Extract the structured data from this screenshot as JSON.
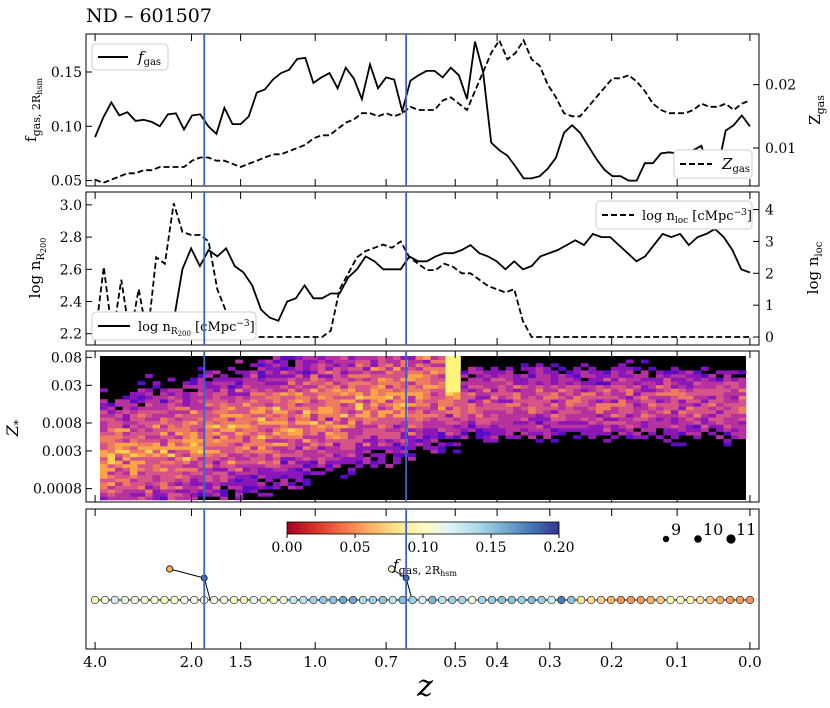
{
  "title": "ND – 601507",
  "xaxis": {
    "label": "z",
    "ticks": [
      {
        "label": "4.0",
        "t": 4.0
      },
      {
        "label": "2.0",
        "t": 9.3
      },
      {
        "label": "1.5",
        "t": 12.0
      },
      {
        "label": "1.0",
        "t": 16.1
      },
      {
        "label": "0.7",
        "t": 20.0
      },
      {
        "label": "0.5",
        "t": 23.8
      },
      {
        "label": "0.4",
        "t": 26.1
      },
      {
        "label": "0.3",
        "t": 29.0
      },
      {
        "label": "0.2",
        "t": 32.4
      },
      {
        "label": "0.1",
        "t": 36.0
      },
      {
        "label": "0.0",
        "t": 40.0
      }
    ],
    "t_range": [
      3.5,
      40.5
    ],
    "vlines_t": [
      10.0,
      21.1
    ]
  },
  "colors": {
    "vline": "#3b64c9",
    "line": "#000000",
    "heatmap_bg": "#000000"
  },
  "chart_data": [
    {
      "type": "line",
      "panel": "fgas",
      "ylabel_left": "f_gas, 2R_hsm",
      "ylabel_right": "Z_gas",
      "ylim_left": [
        0.045,
        0.185
      ],
      "yticks_left": [
        "0.05",
        "0.10",
        "0.15"
      ],
      "ylim_right": [
        0.004,
        0.028
      ],
      "yticks_right": [
        "0.01",
        "0.02"
      ],
      "legend": [
        {
          "label": "f_gas",
          "style": "solid",
          "position": "top-left"
        },
        {
          "label": "Z_gas",
          "style": "dashed",
          "position": "bottom-right"
        }
      ],
      "series": [
        {
          "name": "f_gas",
          "style": "solid",
          "axis": "left",
          "values": [
            0.09,
            0.108,
            0.122,
            0.11,
            0.113,
            0.105,
            0.106,
            0.104,
            0.1,
            0.111,
            0.112,
            0.097,
            0.11,
            0.111,
            0.1,
            0.093,
            0.117,
            0.102,
            0.102,
            0.109,
            0.131,
            0.134,
            0.143,
            0.149,
            0.152,
            0.162,
            0.163,
            0.14,
            0.145,
            0.149,
            0.135,
            0.154,
            0.144,
            0.125,
            0.157,
            0.135,
            0.145,
            0.143,
            0.114,
            0.142,
            0.147,
            0.151,
            0.151,
            0.145,
            0.154,
            0.147,
            0.125,
            0.178,
            0.15,
            0.085,
            0.078,
            0.073,
            0.063,
            0.052,
            0.052,
            0.054,
            0.061,
            0.071,
            0.094,
            0.101,
            0.094,
            0.082,
            0.07,
            0.06,
            0.054,
            0.054,
            0.05,
            0.05,
            0.066,
            0.066,
            0.075,
            0.076,
            0.075,
            0.065,
            0.078,
            0.082,
            0.058,
            0.06,
            0.096,
            0.101,
            0.11,
            0.1
          ]
        },
        {
          "name": "Z_gas",
          "style": "dashed",
          "axis": "right",
          "values": [
            0.005,
            0.0045,
            0.005,
            0.0055,
            0.006,
            0.006,
            0.0065,
            0.0065,
            0.007,
            0.007,
            0.007,
            0.007,
            0.008,
            0.0085,
            0.0085,
            0.008,
            0.008,
            0.0075,
            0.007,
            0.0075,
            0.008,
            0.0085,
            0.009,
            0.009,
            0.0095,
            0.01,
            0.0105,
            0.0115,
            0.012,
            0.012,
            0.013,
            0.014,
            0.0145,
            0.0155,
            0.0155,
            0.015,
            0.0155,
            0.015,
            0.0155,
            0.0165,
            0.016,
            0.016,
            0.016,
            0.0175,
            0.018,
            0.017,
            0.016,
            0.019,
            0.022,
            0.025,
            0.027,
            0.024,
            0.025,
            0.027,
            0.024,
            0.023,
            0.02,
            0.018,
            0.0155,
            0.015,
            0.015,
            0.0165,
            0.018,
            0.0195,
            0.021,
            0.021,
            0.0215,
            0.0205,
            0.019,
            0.017,
            0.016,
            0.0155,
            0.0155,
            0.0155,
            0.016,
            0.017,
            0.0165,
            0.0165,
            0.017,
            0.016,
            0.017,
            0.0175
          ]
        }
      ]
    },
    {
      "type": "line",
      "panel": "density",
      "ylabel_left": "log n_R200",
      "ylabel_right": "log n_loc",
      "ylim_left": [
        2.13,
        3.08
      ],
      "yticks_left": [
        "2.2",
        "2.4",
        "2.6",
        "2.8",
        "3.0"
      ],
      "ylim_right": [
        -0.25,
        4.55
      ],
      "yticks_right": [
        "0",
        "1",
        "2",
        "3",
        "4"
      ],
      "legend": [
        {
          "label": "log n_loc [cMpc^-3]",
          "style": "dashed",
          "position": "top-right"
        },
        {
          "label": "log n_R200 [cMpc^-3]",
          "style": "solid",
          "position": "bottom-left"
        }
      ],
      "series": [
        {
          "name": "log n_R200",
          "style": "solid",
          "axis": "left",
          "values": [
            2.2,
            2.2,
            2.2,
            2.22,
            2.22,
            2.22,
            2.22,
            2.22,
            2.22,
            2.28,
            2.6,
            2.73,
            2.62,
            2.72,
            2.68,
            2.73,
            2.62,
            2.58,
            2.5,
            2.35,
            2.3,
            2.28,
            2.4,
            2.42,
            2.5,
            2.42,
            2.42,
            2.45,
            2.45,
            2.55,
            2.6,
            2.68,
            2.65,
            2.6,
            2.6,
            2.6,
            2.68,
            2.65,
            2.65,
            2.68,
            2.7,
            2.7,
            2.72,
            2.75,
            2.7,
            2.68,
            2.65,
            2.6,
            2.65,
            2.6,
            2.62,
            2.68,
            2.7,
            2.72,
            2.75,
            2.78,
            2.75,
            2.82,
            2.8,
            2.8,
            2.75,
            2.7,
            2.65,
            2.68,
            2.75,
            2.82,
            2.8,
            2.82,
            2.75,
            2.8,
            2.82,
            2.85,
            2.8,
            2.72,
            2.6,
            2.58
          ]
        },
        {
          "name": "log n_loc",
          "style": "dashed",
          "axis": "right",
          "values": [
            0,
            2.2,
            0,
            1.8,
            0,
            1.5,
            0,
            2.5,
            2.3,
            4.2,
            3.3,
            3.2,
            3.2,
            3.0,
            1.5,
            0.8,
            0.5,
            0,
            0,
            0,
            0,
            0,
            0,
            0,
            0,
            0,
            0,
            0.2,
            1.5,
            2.0,
            2.5,
            2.7,
            2.8,
            2.9,
            2.8,
            3.0,
            2.5,
            2.3,
            2.1,
            2.1,
            2.3,
            2.2,
            2.0,
            2.0,
            1.8,
            1.6,
            1.5,
            1.4,
            1.5,
            0.5,
            0,
            0,
            0,
            0,
            0,
            0,
            0,
            0,
            0,
            0,
            0,
            0,
            0,
            0,
            0,
            0,
            0,
            0,
            0,
            0,
            0,
            0,
            0,
            0,
            0,
            0
          ]
        }
      ]
    },
    {
      "type": "heatmap",
      "panel": "metallicity",
      "ylabel": "Z_*",
      "ylog": true,
      "ylim": [
        0.0005,
        0.1
      ],
      "yticks": [
        "0.08",
        "0.03",
        "0.008",
        "0.003",
        "0.0008"
      ],
      "colormap": "plasma",
      "note": "star-particle metallicity distribution vs redshift"
    },
    {
      "type": "scatter",
      "panel": "merger_tree",
      "colorbar": {
        "label": "f_gas, 2R_hsm",
        "range": [
          0.0,
          0.2
        ],
        "ticks": [
          "0.00",
          "0.05",
          "0.10",
          "0.15",
          "0.20"
        ],
        "colormap": "RdYlBu"
      },
      "size_legend": [
        "9",
        "10",
        "11"
      ],
      "main_branch_fgas": [
        0.09,
        0.108,
        0.122,
        0.11,
        0.113,
        0.105,
        0.106,
        0.104,
        0.1,
        0.111,
        0.112,
        0.097,
        0.11,
        0.111,
        0.1,
        0.093,
        0.117,
        0.102,
        0.102,
        0.109,
        0.131,
        0.134,
        0.143,
        0.149,
        0.152,
        0.162,
        0.163,
        0.14,
        0.145,
        0.149,
        0.135,
        0.154,
        0.144,
        0.125,
        0.157,
        0.135,
        0.145,
        0.143,
        0.114,
        0.142,
        0.147,
        0.151,
        0.151,
        0.145,
        0.154,
        0.147,
        0.125,
        0.178,
        0.15,
        0.085,
        0.078,
        0.073,
        0.063,
        0.052,
        0.052,
        0.054,
        0.061,
        0.071,
        0.094,
        0.101,
        0.094,
        0.082,
        0.07,
        0.06,
        0.054,
        0.054,
        0.05
      ],
      "mergers": [
        {
          "t": 8.1,
          "fgas": 0.06,
          "merge_t": 10.0
        },
        {
          "t": 20.3,
          "fgas": 0.11,
          "merge_t": 21.1
        }
      ]
    }
  ]
}
